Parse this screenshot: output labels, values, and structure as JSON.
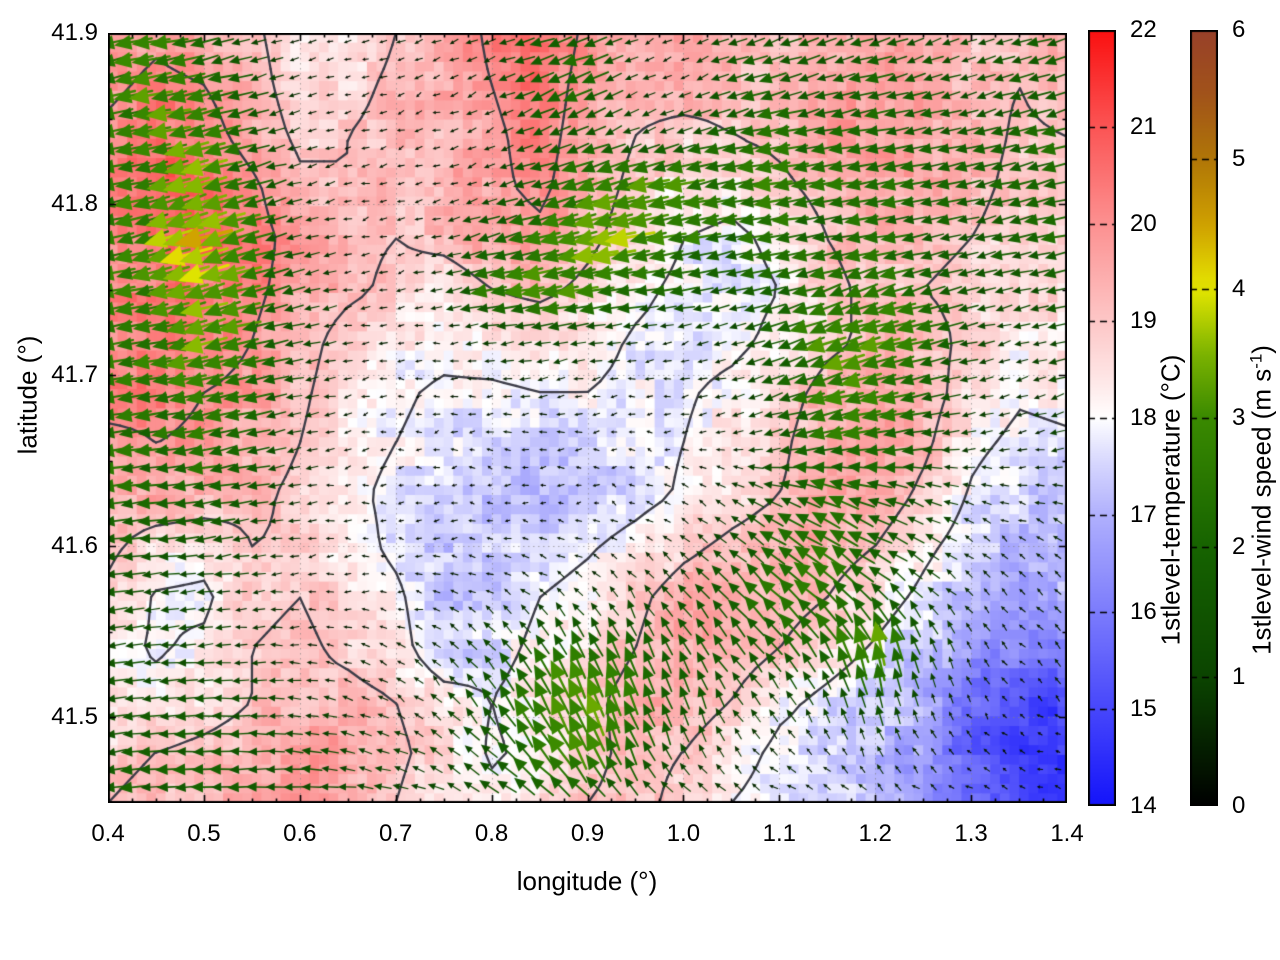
{
  "chart_data": {
    "type": "heatmap",
    "overlay": "quiver",
    "xlabel": "longitude (°)",
    "ylabel": "latitude (°)",
    "axes": {
      "x": {
        "range": [
          0.4,
          1.4
        ],
        "tick_values": [
          0.4,
          0.5,
          0.6,
          0.7,
          0.8,
          0.9,
          1.0,
          1.1,
          1.2,
          1.3,
          1.4
        ],
        "tick_labels": [
          "0.4",
          "0.5",
          "0.6",
          "0.7",
          "0.8",
          "0.9",
          "1.0",
          "1.1",
          "1.2",
          "1.3",
          "1.4"
        ],
        "minor_step": 0.025
      },
      "y": {
        "range": [
          41.45,
          41.9
        ],
        "tick_values": [
          41.5,
          41.6,
          41.7,
          41.8,
          41.9
        ],
        "tick_labels": [
          "41.5",
          "41.6",
          "41.7",
          "41.8",
          "41.9"
        ],
        "minor_step": 0.05
      }
    },
    "grid": {
      "lon0": 0.4,
      "dlon": 0.05,
      "ncols": 21,
      "lat0": 41.9,
      "dlat": -0.03,
      "nrows": 16
    },
    "contour_levels": [
      18,
      19,
      20
    ],
    "temperature": [
      [
        19.5,
        19.8,
        19.5,
        19.2,
        18.4,
        18.3,
        19.0,
        19.3,
        20.2,
        20.8,
        19.8,
        19.4,
        19.6,
        19.4,
        19.2,
        19.4,
        19.6,
        19.3,
        19.0,
        19.2,
        19.4
      ],
      [
        19.8,
        20.2,
        20.0,
        19.4,
        18.5,
        18.7,
        19.2,
        19.4,
        20.0,
        20.6,
        19.6,
        19.2,
        19.3,
        19.2,
        19.0,
        19.5,
        19.8,
        19.5,
        19.2,
        19.0,
        19.3
      ],
      [
        20.2,
        20.6,
        20.4,
        19.6,
        18.8,
        19.0,
        19.3,
        19.2,
        19.8,
        20.4,
        19.5,
        19.0,
        18.8,
        19.0,
        19.2,
        19.6,
        19.9,
        19.6,
        19.3,
        18.9,
        19.0
      ],
      [
        20.0,
        20.8,
        21.0,
        20.2,
        19.2,
        19.0,
        19.2,
        19.3,
        19.8,
        20.2,
        19.4,
        18.8,
        18.5,
        18.3,
        18.8,
        19.3,
        19.6,
        19.4,
        19.2,
        18.8,
        18.8
      ],
      [
        20.2,
        20.6,
        20.8,
        20.4,
        19.6,
        19.2,
        19.0,
        19.2,
        19.5,
        19.8,
        19.2,
        18.6,
        18.0,
        17.8,
        18.2,
        19.0,
        19.3,
        19.2,
        19.0,
        18.7,
        18.9
      ],
      [
        20.0,
        20.4,
        20.5,
        20.2,
        19.6,
        19.2,
        18.8,
        18.6,
        19.0,
        19.2,
        18.8,
        18.2,
        17.8,
        17.7,
        18.0,
        18.8,
        19.2,
        19.0,
        18.8,
        18.5,
        18.7
      ],
      [
        20.2,
        20.3,
        20.4,
        20.0,
        19.4,
        18.6,
        18.3,
        18.2,
        18.3,
        18.4,
        18.3,
        17.9,
        17.7,
        17.8,
        18.2,
        18.8,
        19.2,
        19.3,
        18.8,
        18.3,
        18.4
      ],
      [
        20.3,
        20.2,
        20.0,
        19.8,
        19.2,
        18.4,
        18.1,
        17.9,
        17.9,
        18.0,
        18.0,
        17.8,
        17.9,
        18.2,
        18.6,
        19.3,
        19.6,
        19.4,
        18.6,
        18.1,
        18.2
      ],
      [
        19.8,
        20.0,
        19.9,
        19.5,
        19.0,
        18.3,
        18.0,
        17.8,
        17.5,
        17.4,
        17.6,
        17.7,
        18.0,
        18.4,
        18.8,
        19.6,
        19.8,
        19.2,
        18.2,
        17.8,
        17.9
      ],
      [
        19.4,
        19.6,
        19.5,
        19.2,
        18.8,
        18.2,
        17.8,
        17.6,
        17.3,
        17.1,
        17.4,
        17.7,
        18.1,
        18.6,
        19.0,
        19.5,
        19.6,
        18.8,
        17.9,
        17.4,
        17.4
      ],
      [
        19.2,
        18.6,
        18.4,
        19.0,
        18.9,
        18.4,
        17.8,
        17.3,
        17.4,
        17.6,
        17.9,
        18.3,
        18.8,
        19.2,
        19.5,
        19.4,
        19.0,
        18.2,
        17.6,
        17.2,
        17.3
      ],
      [
        18.8,
        17.9,
        17.8,
        18.8,
        19.0,
        18.6,
        18.2,
        17.2,
        17.5,
        18.0,
        18.3,
        18.8,
        19.4,
        19.6,
        19.4,
        19.0,
        18.4,
        17.8,
        17.2,
        16.8,
        16.9
      ],
      [
        18.3,
        17.9,
        18.2,
        19.0,
        19.2,
        18.8,
        18.4,
        17.3,
        17.7,
        18.2,
        18.5,
        19.0,
        19.6,
        19.5,
        19.0,
        18.4,
        17.9,
        17.3,
        16.6,
        16.2,
        16.0
      ],
      [
        18.2,
        18.3,
        18.6,
        19.0,
        19.2,
        19.3,
        19.0,
        18.4,
        18.0,
        18.4,
        18.8,
        19.3,
        19.5,
        19.0,
        18.2,
        17.8,
        17.4,
        17.0,
        15.8,
        15.2,
        15.0
      ],
      [
        18.8,
        19.0,
        19.2,
        19.4,
        19.8,
        19.6,
        19.2,
        18.6,
        17.9,
        18.2,
        18.8,
        19.2,
        19.0,
        18.4,
        17.8,
        17.6,
        17.2,
        16.6,
        15.4,
        14.9,
        14.8
      ],
      [
        19.0,
        19.2,
        19.3,
        19.8,
        20.0,
        19.6,
        19.0,
        18.4,
        18.2,
        18.6,
        19.0,
        19.2,
        18.8,
        18.0,
        17.6,
        17.4,
        17.2,
        16.4,
        15.5,
        15.0,
        14.9
      ]
    ],
    "wind_u": [
      [
        -2.2,
        -2.5,
        -2.0,
        -1.0,
        -0.4,
        -0.3,
        -0.4,
        -0.5,
        -0.8,
        -1.5,
        -1.8,
        -0.6,
        -0.5,
        -1.2,
        -1.5,
        -1.2,
        -1.5,
        -1.2,
        -1.0,
        -1.4,
        -1.6
      ],
      [
        -2.4,
        -2.8,
        -2.4,
        -1.4,
        -0.5,
        -0.3,
        -0.3,
        -0.4,
        -0.6,
        -1.8,
        -2.0,
        -0.8,
        -0.4,
        -1.5,
        -1.8,
        -1.5,
        -1.8,
        -1.5,
        -1.2,
        -1.5,
        -1.8
      ],
      [
        -2.5,
        -3.0,
        -2.8,
        -1.8,
        -0.6,
        -0.4,
        -0.3,
        -0.4,
        -0.5,
        -1.2,
        -1.6,
        -1.0,
        -1.4,
        -2.0,
        -2.2,
        -2.0,
        -2.2,
        -1.8,
        -1.5,
        -1.8,
        -2.0
      ],
      [
        -2.2,
        -2.8,
        -3.6,
        -2.2,
        -0.8,
        -0.4,
        -0.3,
        -0.4,
        -0.8,
        -1.6,
        -2.6,
        -3.0,
        -2.8,
        -2.4,
        -2.6,
        -2.4,
        -2.4,
        -2.0,
        -1.8,
        -2.0,
        -2.2
      ],
      [
        -2.4,
        -3.0,
        -3.8,
        -2.6,
        -1.0,
        -0.4,
        -0.3,
        -0.5,
        -1.8,
        -2.6,
        -3.2,
        -3.4,
        -2.6,
        -2.2,
        -2.2,
        -2.0,
        -2.2,
        -1.8,
        -1.5,
        -1.8,
        -2.0
      ],
      [
        -2.6,
        -2.8,
        -3.4,
        -2.8,
        -1.2,
        -0.5,
        -0.4,
        -0.8,
        -2.4,
        -3.0,
        -2.8,
        -2.4,
        -1.8,
        -1.5,
        -1.8,
        -2.2,
        -2.6,
        -2.2,
        -1.5,
        -1.2,
        -1.5
      ],
      [
        -2.8,
        -2.6,
        -3.0,
        -2.6,
        -1.2,
        -0.5,
        -0.3,
        -0.4,
        -0.8,
        -1.2,
        -1.0,
        -0.6,
        -0.5,
        -0.8,
        -1.8,
        -2.8,
        -3.0,
        -2.4,
        -1.2,
        -0.8,
        -1.2
      ],
      [
        -2.6,
        -2.4,
        -2.6,
        -2.2,
        -1.0,
        -0.4,
        -0.2,
        -0.3,
        -0.4,
        -0.5,
        -0.4,
        -0.3,
        -0.4,
        -0.6,
        -1.5,
        -2.6,
        -2.8,
        -2.0,
        -1.0,
        -0.6,
        -1.0
      ],
      [
        -2.4,
        -2.2,
        -2.4,
        -1.8,
        -0.8,
        -0.3,
        -0.2,
        -0.2,
        -0.3,
        -0.3,
        -0.3,
        -0.2,
        -0.3,
        -0.5,
        -1.2,
        -2.2,
        -2.4,
        -1.6,
        -0.8,
        -0.5,
        -0.8
      ],
      [
        -2.2,
        -2.0,
        -2.0,
        -1.4,
        -0.6,
        -0.3,
        -0.2,
        -0.2,
        -0.2,
        -0.3,
        -0.2,
        -0.2,
        -0.3,
        -0.6,
        -1.4,
        -2.0,
        -1.8,
        -1.2,
        -0.6,
        -0.4,
        -0.6
      ],
      [
        -1.8,
        -1.6,
        -1.5,
        -1.0,
        -0.5,
        -0.3,
        -0.2,
        -0.3,
        -0.3,
        -0.3,
        -0.3,
        -0.3,
        -0.5,
        -1.0,
        -1.8,
        -2.0,
        -1.6,
        -1.0,
        -0.5,
        -0.3,
        -0.5
      ],
      [
        -1.5,
        -1.2,
        -1.0,
        -0.8,
        -0.4,
        -0.3,
        -0.3,
        -0.4,
        -0.4,
        -0.5,
        -0.6,
        -0.6,
        -0.8,
        -1.2,
        -1.8,
        -1.8,
        -1.2,
        -0.8,
        -0.4,
        -0.3,
        -0.4
      ],
      [
        -1.4,
        -1.2,
        -1.0,
        -0.8,
        -0.5,
        -0.4,
        -0.4,
        -0.5,
        -0.8,
        -1.0,
        -1.0,
        -0.8,
        -0.8,
        -1.0,
        -1.2,
        -1.0,
        -0.8,
        -0.5,
        -0.3,
        -0.2,
        -0.3
      ],
      [
        -1.5,
        -1.4,
        -1.5,
        -1.2,
        -0.8,
        -0.6,
        -0.5,
        -0.6,
        -1.0,
        -1.4,
        -1.2,
        -0.8,
        -0.6,
        -0.6,
        -0.6,
        -0.5,
        -0.4,
        -0.3,
        -0.2,
        -0.2,
        -0.2
      ],
      [
        -1.8,
        -1.6,
        -1.8,
        -1.5,
        -1.2,
        -1.0,
        -0.8,
        -0.8,
        -1.2,
        -1.6,
        -1.4,
        -0.8,
        -0.5,
        -0.4,
        -0.4,
        -0.3,
        -0.3,
        -0.3,
        -0.2,
        -0.2,
        -0.2
      ],
      [
        -2.0,
        -1.8,
        -2.0,
        -1.8,
        -1.5,
        -1.2,
        -1.0,
        -1.0,
        -1.4,
        -1.8,
        -1.6,
        -1.0,
        -0.8,
        -0.6,
        -0.5,
        -0.4,
        -0.4,
        -0.3,
        -0.3,
        -0.2,
        -0.3
      ]
    ],
    "wind_v": [
      [
        -0.6,
        -0.4,
        -0.5,
        -0.3,
        -0.1,
        -0.1,
        -0.2,
        -0.2,
        -0.3,
        -0.5,
        -0.6,
        -0.3,
        -0.2,
        -0.4,
        -0.5,
        -0.4,
        -0.5,
        -0.4,
        -0.3,
        -0.4,
        -0.5
      ],
      [
        -0.6,
        -0.6,
        -0.6,
        -0.4,
        -0.2,
        -0.1,
        -0.1,
        -0.2,
        -0.3,
        -0.8,
        -0.8,
        -0.4,
        -0.2,
        -0.5,
        -0.5,
        -0.4,
        -0.5,
        -0.5,
        -0.4,
        -0.4,
        -0.5
      ],
      [
        -0.5,
        -0.6,
        -0.8,
        -0.5,
        -0.2,
        -0.1,
        -0.1,
        -0.1,
        -0.2,
        -0.5,
        -0.6,
        -0.4,
        -0.4,
        -0.5,
        -0.4,
        -0.4,
        -0.4,
        -0.4,
        -0.4,
        -0.5,
        -0.5
      ],
      [
        -0.4,
        -0.6,
        -1.0,
        -0.6,
        -0.2,
        -0.1,
        -0.1,
        -0.1,
        -0.3,
        -0.5,
        -0.8,
        -0.8,
        -0.6,
        -0.5,
        -0.5,
        -0.4,
        -0.4,
        -0.4,
        -0.4,
        -0.5,
        -0.5
      ],
      [
        -0.5,
        -0.8,
        -1.2,
        -0.8,
        -0.3,
        -0.1,
        -0.1,
        -0.2,
        -0.5,
        -0.7,
        -0.8,
        -0.6,
        -0.5,
        -0.4,
        -0.4,
        -0.3,
        -0.4,
        -0.4,
        -0.3,
        -0.4,
        -0.5
      ],
      [
        -0.5,
        -0.6,
        -1.0,
        -0.8,
        -0.3,
        -0.1,
        -0.1,
        -0.2,
        -0.4,
        -0.5,
        -0.4,
        -0.3,
        -0.3,
        -0.3,
        -0.5,
        -0.8,
        -0.8,
        -0.6,
        -0.4,
        -0.3,
        -0.4
      ],
      [
        -0.5,
        -0.5,
        -0.8,
        -0.6,
        -0.3,
        -0.1,
        0.0,
        0.0,
        -0.1,
        -0.2,
        -0.2,
        -0.1,
        -0.1,
        -0.2,
        -0.6,
        -1.0,
        -0.8,
        -0.6,
        -0.3,
        -0.2,
        -0.3
      ],
      [
        -0.4,
        -0.4,
        -0.6,
        -0.5,
        -0.2,
        -0.1,
        0.0,
        0.0,
        0.0,
        -0.1,
        -0.1,
        0.0,
        -0.1,
        -0.2,
        -0.5,
        -0.8,
        -0.6,
        -0.4,
        -0.2,
        -0.2,
        -0.3
      ],
      [
        -0.4,
        -0.3,
        -0.5,
        -0.4,
        -0.2,
        -0.1,
        0.0,
        0.0,
        0.0,
        0.0,
        0.0,
        0.0,
        0.0,
        -0.1,
        -0.3,
        -0.5,
        -0.4,
        -0.2,
        -0.1,
        -0.1,
        -0.2
      ],
      [
        -0.3,
        -0.2,
        -0.3,
        -0.2,
        -0.1,
        0.0,
        0.0,
        0.0,
        0.0,
        0.0,
        0.0,
        0.1,
        0.2,
        0.3,
        0.5,
        0.8,
        0.6,
        0.4,
        0.2,
        0.1,
        0.2
      ],
      [
        -0.2,
        -0.1,
        -0.2,
        -0.1,
        -0.1,
        0.0,
        0.0,
        0.0,
        0.0,
        0.1,
        0.1,
        0.2,
        0.4,
        0.8,
        1.2,
        1.4,
        1.0,
        0.6,
        0.3,
        0.2,
        0.3
      ],
      [
        -0.2,
        -0.1,
        -0.1,
        -0.1,
        0.0,
        0.0,
        0.0,
        0.1,
        0.2,
        0.4,
        0.6,
        0.8,
        1.0,
        1.4,
        1.8,
        1.8,
        1.4,
        0.8,
        0.4,
        0.3,
        0.4
      ],
      [
        -0.2,
        -0.1,
        -0.1,
        0.0,
        0.0,
        0.1,
        0.2,
        0.4,
        0.8,
        1.5,
        2.0,
        1.8,
        1.4,
        1.2,
        1.5,
        1.8,
        3.2,
        1.4,
        0.5,
        0.3,
        0.4
      ],
      [
        -0.2,
        -0.1,
        0.0,
        0.0,
        0.1,
        0.2,
        0.3,
        0.6,
        1.4,
        2.6,
        3.4,
        2.4,
        1.6,
        1.0,
        0.8,
        1.0,
        1.6,
        0.8,
        0.3,
        0.2,
        0.2
      ],
      [
        -0.2,
        -0.1,
        0.0,
        0.0,
        0.1,
        0.2,
        0.3,
        0.5,
        1.0,
        2.0,
        2.6,
        1.8,
        1.0,
        0.6,
        0.4,
        0.4,
        0.6,
        0.4,
        0.2,
        0.1,
        0.1
      ],
      [
        -0.3,
        -0.2,
        -0.1,
        -0.1,
        0.0,
        0.1,
        0.2,
        0.3,
        0.6,
        1.0,
        1.2,
        0.8,
        0.5,
        0.3,
        0.2,
        0.2,
        0.3,
        0.2,
        0.1,
        0.1,
        0.1
      ]
    ],
    "colormaps": {
      "temperature_stops": [
        [
          0.0,
          "#1414fa"
        ],
        [
          0.125,
          "#4747fb"
        ],
        [
          0.25,
          "#7c7cfc"
        ],
        [
          0.375,
          "#b0b0fd"
        ],
        [
          0.45,
          "#dcdcfe"
        ],
        [
          0.5,
          "#ffffff"
        ],
        [
          0.55,
          "#fee6e6"
        ],
        [
          0.625,
          "#fdc7c7"
        ],
        [
          0.75,
          "#fc9191"
        ],
        [
          0.875,
          "#fb5555"
        ],
        [
          1.0,
          "#fa1010"
        ]
      ],
      "wind_stops": [
        [
          0.0,
          "#000000"
        ],
        [
          0.167,
          "#0b4500"
        ],
        [
          0.333,
          "#166300"
        ],
        [
          0.5,
          "#3a8a00"
        ],
        [
          0.583,
          "#7cb400"
        ],
        [
          0.667,
          "#e6e600"
        ],
        [
          0.75,
          "#cfa000"
        ],
        [
          0.833,
          "#b07607"
        ],
        [
          0.917,
          "#a1531a"
        ],
        [
          1.0,
          "#98402a"
        ]
      ],
      "contour_color": "#3d3d48",
      "graticule_color": "#9a9a9a"
    },
    "colorbars": [
      {
        "id": "temperature",
        "title": "1stlevel-temperature (°C)",
        "min": 14,
        "max": 22,
        "tick_labels": [
          "14",
          "15",
          "16",
          "17",
          "18",
          "19",
          "20",
          "21",
          "22"
        ]
      },
      {
        "id": "wind-speed",
        "title_main": "1stlevel-wind speed (m s",
        "title_sup": "-1",
        "title_end": ")",
        "min": 0,
        "max": 6,
        "tick_labels": [
          "0",
          "1",
          "2",
          "3",
          "4",
          "5",
          "6"
        ]
      }
    ]
  }
}
